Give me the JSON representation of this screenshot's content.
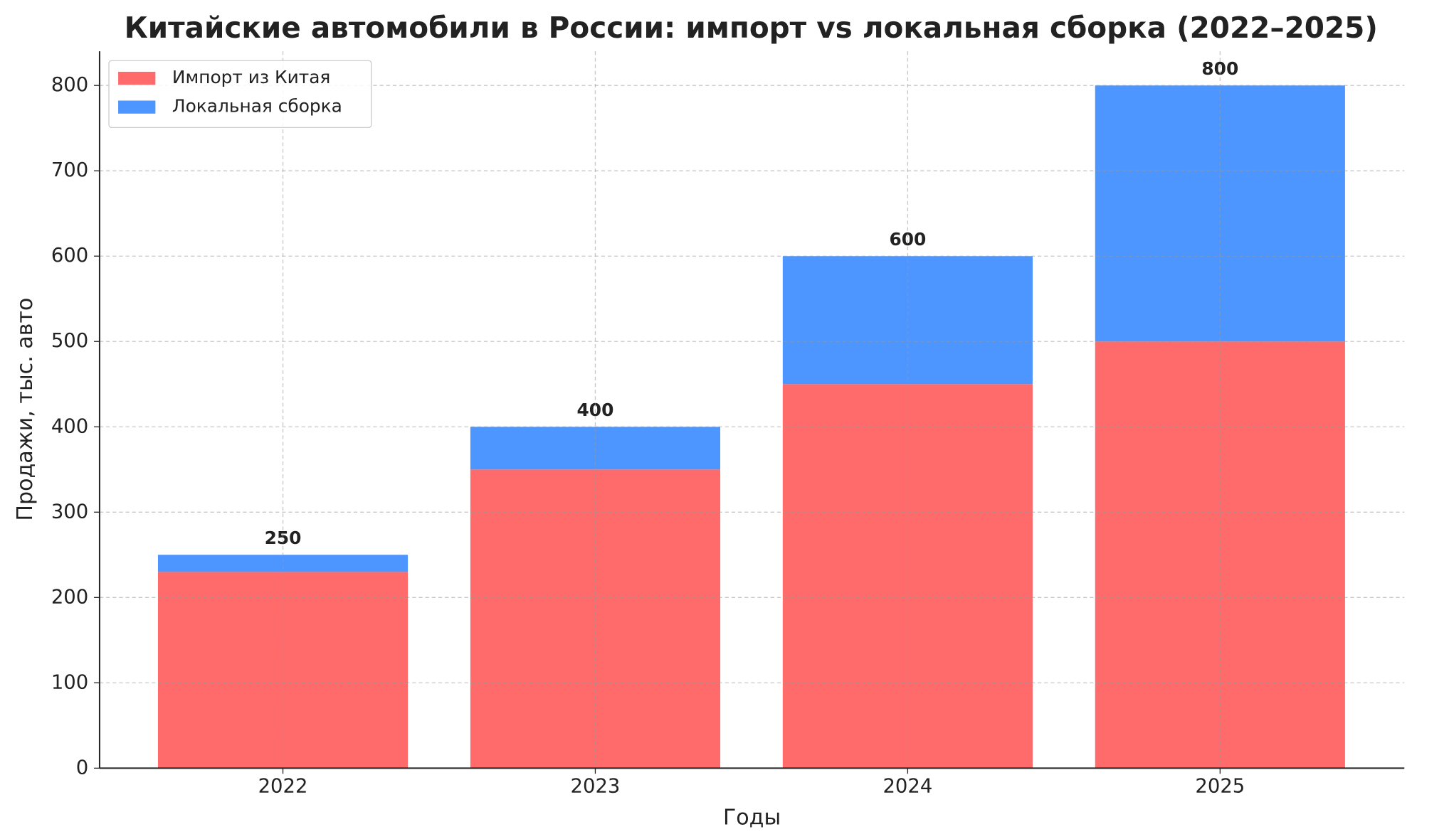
{
  "chart_data": {
    "type": "stacked_bar",
    "title": "Китайские автомобили в России: импорт vs локальная сборка (2022–2025)",
    "x_label": "Годы",
    "y_label": "Продажи, тыс. авто",
    "categories": [
      "2022",
      "2023",
      "2024",
      "2025"
    ],
    "series": [
      {
        "name": "Импорт из Китая",
        "color": "#ff6b6b",
        "values": [
          230,
          350,
          450,
          500
        ]
      },
      {
        "name": "Локальная сборка",
        "color": "#4d96ff",
        "values": [
          20,
          50,
          150,
          300
        ]
      }
    ],
    "totals": [
      250,
      400,
      600,
      800
    ],
    "ylim": [
      0,
      840
    ],
    "yticks": [
      0,
      100,
      200,
      300,
      400,
      500,
      600,
      700,
      800
    ],
    "grid": true,
    "legend": "upper left"
  }
}
